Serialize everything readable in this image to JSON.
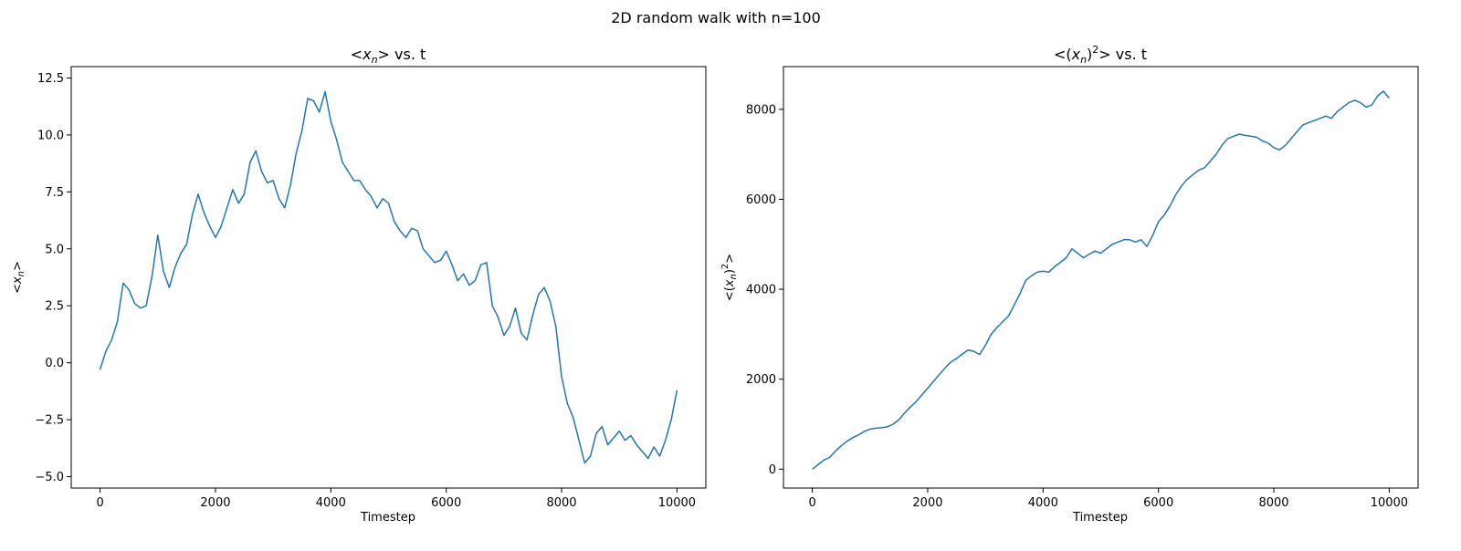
{
  "figure": {
    "suptitle": "2D random walk with n=100"
  },
  "chart_data": [
    {
      "type": "line",
      "title": "<x_n> vs. t",
      "xlabel": "Timestep",
      "ylabel": "<x_n>",
      "xlim": [
        -500,
        10500
      ],
      "ylim": [
        -5.5,
        13.0
      ],
      "xticks": [
        0,
        2000,
        4000,
        6000,
        8000,
        10000
      ],
      "xtick_labels": [
        "0",
        "2000",
        "4000",
        "6000",
        "8000",
        "10000"
      ],
      "yticks": [
        -5.0,
        -2.5,
        0.0,
        2.5,
        5.0,
        7.5,
        10.0,
        12.5
      ],
      "ytick_labels": [
        "−5.0",
        "−2.5",
        "0.0",
        "2.5",
        "5.0",
        "7.5",
        "10.0",
        "12.5"
      ],
      "grid": false,
      "series": [
        {
          "color": "#1f77b4",
          "x": [
            0,
            100,
            200,
            300,
            400,
            500,
            600,
            700,
            800,
            900,
            1000,
            1100,
            1200,
            1300,
            1400,
            1500,
            1600,
            1700,
            1800,
            1900,
            2000,
            2100,
            2200,
            2300,
            2400,
            2500,
            2600,
            2700,
            2800,
            2900,
            3000,
            3100,
            3200,
            3300,
            3400,
            3500,
            3600,
            3700,
            3800,
            3900,
            4000,
            4100,
            4200,
            4300,
            4400,
            4500,
            4600,
            4700,
            4800,
            4900,
            5000,
            5100,
            5200,
            5300,
            5400,
            5500,
            5600,
            5700,
            5800,
            5900,
            6000,
            6100,
            6200,
            6300,
            6400,
            6500,
            6600,
            6700,
            6800,
            6900,
            7000,
            7100,
            7200,
            7300,
            7400,
            7500,
            7600,
            7700,
            7800,
            7900,
            8000,
            8100,
            8200,
            8300,
            8400,
            8500,
            8600,
            8700,
            8800,
            8900,
            9000,
            9100,
            9200,
            9300,
            9400,
            9500,
            9600,
            9700,
            9800,
            9900,
            10000
          ],
          "y": [
            -0.3,
            0.5,
            1.0,
            1.8,
            3.5,
            3.2,
            2.6,
            2.4,
            2.5,
            3.8,
            5.6,
            4.0,
            3.3,
            4.2,
            4.8,
            5.2,
            6.5,
            7.4,
            6.6,
            6.0,
            5.5,
            6.0,
            6.8,
            7.6,
            7.0,
            7.4,
            8.8,
            9.3,
            8.4,
            7.9,
            8.0,
            7.2,
            6.8,
            7.8,
            9.2,
            10.2,
            11.6,
            11.5,
            11.0,
            11.9,
            10.6,
            9.8,
            8.8,
            8.4,
            8.0,
            8.0,
            7.6,
            7.3,
            6.8,
            7.2,
            7.0,
            6.2,
            5.8,
            5.5,
            5.9,
            5.8,
            5.0,
            4.7,
            4.4,
            4.5,
            4.9,
            4.3,
            3.6,
            3.9,
            3.4,
            3.6,
            4.3,
            4.4,
            2.5,
            2.0,
            1.2,
            1.6,
            2.4,
            1.3,
            1.0,
            2.1,
            3.0,
            3.3,
            2.7,
            1.6,
            -0.6,
            -1.8,
            -2.4,
            -3.4,
            -4.4,
            -4.1,
            -3.1,
            -2.8,
            -3.6,
            -3.3,
            -3.0,
            -3.4,
            -3.2,
            -3.6,
            -3.9,
            -4.2,
            -3.7,
            -4.1,
            -3.4,
            -2.5,
            -1.2
          ]
        }
      ]
    },
    {
      "type": "line",
      "title": "<(x_n)^2> vs. t",
      "xlabel": "Timestep",
      "ylabel": "<(x_n)^2>",
      "xlim": [
        -500,
        10500
      ],
      "ylim": [
        -420,
        8950
      ],
      "xticks": [
        0,
        2000,
        4000,
        6000,
        8000,
        10000
      ],
      "xtick_labels": [
        "0",
        "2000",
        "4000",
        "6000",
        "8000",
        "10000"
      ],
      "yticks": [
        0,
        2000,
        4000,
        6000,
        8000
      ],
      "ytick_labels": [
        "0",
        "2000",
        "4000",
        "6000",
        "8000"
      ],
      "grid": false,
      "series": [
        {
          "color": "#1f77b4",
          "x": [
            0,
            100,
            200,
            300,
            400,
            500,
            600,
            700,
            800,
            900,
            1000,
            1100,
            1200,
            1300,
            1400,
            1500,
            1600,
            1700,
            1800,
            1900,
            2000,
            2100,
            2200,
            2300,
            2400,
            2500,
            2600,
            2700,
            2800,
            2900,
            3000,
            3100,
            3200,
            3300,
            3400,
            3500,
            3600,
            3700,
            3800,
            3900,
            4000,
            4100,
            4200,
            4300,
            4400,
            4500,
            4600,
            4700,
            4800,
            4900,
            5000,
            5100,
            5200,
            5300,
            5400,
            5500,
            5600,
            5700,
            5800,
            5900,
            6000,
            6100,
            6200,
            6300,
            6400,
            6500,
            6600,
            6700,
            6800,
            6900,
            7000,
            7100,
            7200,
            7300,
            7400,
            7500,
            7600,
            7700,
            7800,
            7900,
            8000,
            8100,
            8200,
            8300,
            8400,
            8500,
            8600,
            8700,
            8800,
            8900,
            9000,
            9100,
            9200,
            9300,
            9400,
            9500,
            9600,
            9700,
            9800,
            9900,
            10000
          ],
          "y": [
            0,
            100,
            200,
            260,
            400,
            520,
            620,
            700,
            760,
            840,
            890,
            910,
            920,
            940,
            1000,
            1100,
            1250,
            1380,
            1500,
            1650,
            1800,
            1950,
            2100,
            2250,
            2380,
            2460,
            2560,
            2650,
            2620,
            2550,
            2750,
            3000,
            3150,
            3280,
            3400,
            3650,
            3900,
            4200,
            4300,
            4380,
            4400,
            4380,
            4500,
            4600,
            4700,
            4900,
            4800,
            4700,
            4780,
            4850,
            4800,
            4900,
            5000,
            5050,
            5100,
            5100,
            5050,
            5100,
            4950,
            5200,
            5500,
            5650,
            5850,
            6100,
            6300,
            6450,
            6550,
            6650,
            6700,
            6850,
            7000,
            7200,
            7350,
            7400,
            7450,
            7420,
            7400,
            7380,
            7300,
            7250,
            7150,
            7100,
            7200,
            7350,
            7500,
            7650,
            7700,
            7750,
            7800,
            7850,
            7800,
            7950,
            8050,
            8150,
            8200,
            8150,
            8050,
            8100,
            8300,
            8400,
            8250
          ]
        }
      ]
    }
  ]
}
